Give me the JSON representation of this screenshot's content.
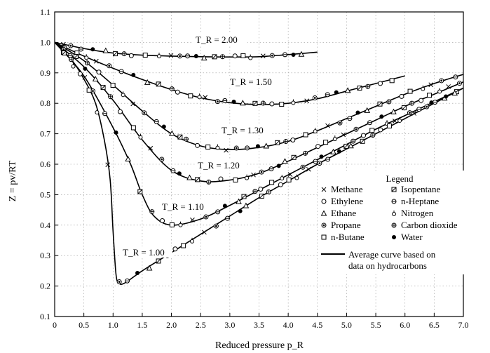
{
  "chart_data": {
    "type": "line",
    "xlabel": "Reduced pressure p_R",
    "ylabel": "Z = pv/RT",
    "xlim": [
      0,
      7.0
    ],
    "ylim": [
      0.1,
      1.1
    ],
    "x_ticks": [
      0,
      0.5,
      1.0,
      1.5,
      2.0,
      2.5,
      3.0,
      3.5,
      4.0,
      4.5,
      5.0,
      5.5,
      6.0,
      6.5,
      7.0
    ],
    "x_tick_labels": [
      "0",
      "0.5",
      "1.0",
      "1.5",
      "2.0",
      "2.5",
      "3.0",
      "3.5",
      "4.0",
      "4.5",
      "5.0",
      "5.5",
      "6.0",
      "6.5",
      "7.0"
    ],
    "y_ticks": [
      0.1,
      0.2,
      0.3,
      0.4,
      0.5,
      0.6,
      0.7,
      0.8,
      0.9,
      1.0,
      1.1
    ],
    "y_tick_labels": [
      "0.1",
      "0.2",
      "0.3",
      "0.4",
      "0.5",
      "0.6",
      "0.7",
      "0.8",
      "0.9",
      "1.0",
      "1.1"
    ],
    "grid": true,
    "legend_position": "bottom-right",
    "series": [
      {
        "name": "T_R = 2.00",
        "x": [
          0,
          0.5,
          1.0,
          1.5,
          2.0,
          2.5,
          3.0,
          3.5,
          4.0,
          4.5
        ],
        "y": [
          1.0,
          0.98,
          0.965,
          0.958,
          0.955,
          0.953,
          0.952,
          0.953,
          0.96,
          0.968
        ]
      },
      {
        "name": "T_R = 1.50",
        "x": [
          0,
          0.5,
          1.0,
          1.5,
          2.0,
          2.5,
          3.0,
          3.5,
          4.0,
          4.5,
          5.0,
          5.5,
          6.0
        ],
        "y": [
          1.0,
          0.955,
          0.915,
          0.878,
          0.845,
          0.818,
          0.802,
          0.796,
          0.8,
          0.815,
          0.84,
          0.865,
          0.89
        ]
      },
      {
        "name": "T_R = 1.30",
        "x": [
          0,
          0.5,
          1.0,
          1.5,
          2.0,
          2.5,
          3.0,
          3.5,
          4.0,
          4.5,
          5.0,
          5.5,
          6.0,
          6.5,
          7.0
        ],
        "y": [
          1.0,
          0.94,
          0.86,
          0.775,
          0.7,
          0.66,
          0.648,
          0.655,
          0.675,
          0.71,
          0.75,
          0.79,
          0.83,
          0.865,
          0.895
        ]
      },
      {
        "name": "T_R = 1.20",
        "x": [
          0,
          0.5,
          1.0,
          1.5,
          2.0,
          2.5,
          3.0,
          3.5,
          4.0,
          4.5,
          5.0,
          5.5,
          6.0,
          6.5,
          7.0
        ],
        "y": [
          1.0,
          0.92,
          0.81,
          0.68,
          0.58,
          0.545,
          0.548,
          0.57,
          0.61,
          0.655,
          0.7,
          0.745,
          0.79,
          0.83,
          0.87
        ]
      },
      {
        "name": "T_R = 1.10",
        "x": [
          0,
          0.5,
          1.0,
          1.3,
          1.5,
          1.7,
          2.0,
          2.5,
          3.0,
          3.5,
          4.0,
          4.5,
          5.0,
          5.5,
          6.0,
          6.5,
          7.0
        ],
        "y": [
          1.0,
          0.89,
          0.72,
          0.6,
          0.5,
          0.43,
          0.4,
          0.42,
          0.465,
          0.515,
          0.565,
          0.615,
          0.665,
          0.715,
          0.76,
          0.805,
          0.85
        ]
      },
      {
        "name": "T_R = 1.00",
        "x": [
          0,
          0.3,
          0.5,
          0.7,
          0.85,
          0.95,
          1.0,
          1.05,
          1.1,
          1.2,
          1.5,
          2.0,
          2.5,
          3.0,
          3.5,
          4.0,
          4.5,
          5.0,
          5.5,
          6.0,
          6.5,
          7.0
        ],
        "y": [
          1.0,
          0.94,
          0.88,
          0.8,
          0.68,
          0.55,
          0.38,
          0.24,
          0.21,
          0.21,
          0.25,
          0.31,
          0.37,
          0.43,
          0.49,
          0.545,
          0.6,
          0.65,
          0.7,
          0.75,
          0.8,
          0.85
        ]
      }
    ],
    "curve_labels": [
      "T_R = 2.00",
      "T_R = 1.50",
      "T_R = 1.30",
      "T_R = 1.20",
      "T_R = 1.10",
      "T_R = 1.00"
    ],
    "legend": {
      "title": "Legend",
      "items": [
        {
          "symbol": "x-mark",
          "label": "Methane"
        },
        {
          "symbol": "open-circle",
          "label": "Ethylene"
        },
        {
          "symbol": "triangle",
          "label": "Ethane"
        },
        {
          "symbol": "dotted-circle",
          "label": "Propane"
        },
        {
          "symbol": "square",
          "label": "n-Butane"
        },
        {
          "symbol": "crossed-square",
          "label": "Isopentane"
        },
        {
          "symbol": "minus-circle",
          "label": "n-Heptane"
        },
        {
          "symbol": "tick-circle",
          "label": "Nitrogen"
        },
        {
          "symbol": "cross-circle",
          "label": "Carbon dioxide"
        },
        {
          "symbol": "filled-circle",
          "label": "Water"
        }
      ],
      "line_label_1": "Average curve based on",
      "line_label_2": "data on hydrocarbons"
    }
  }
}
